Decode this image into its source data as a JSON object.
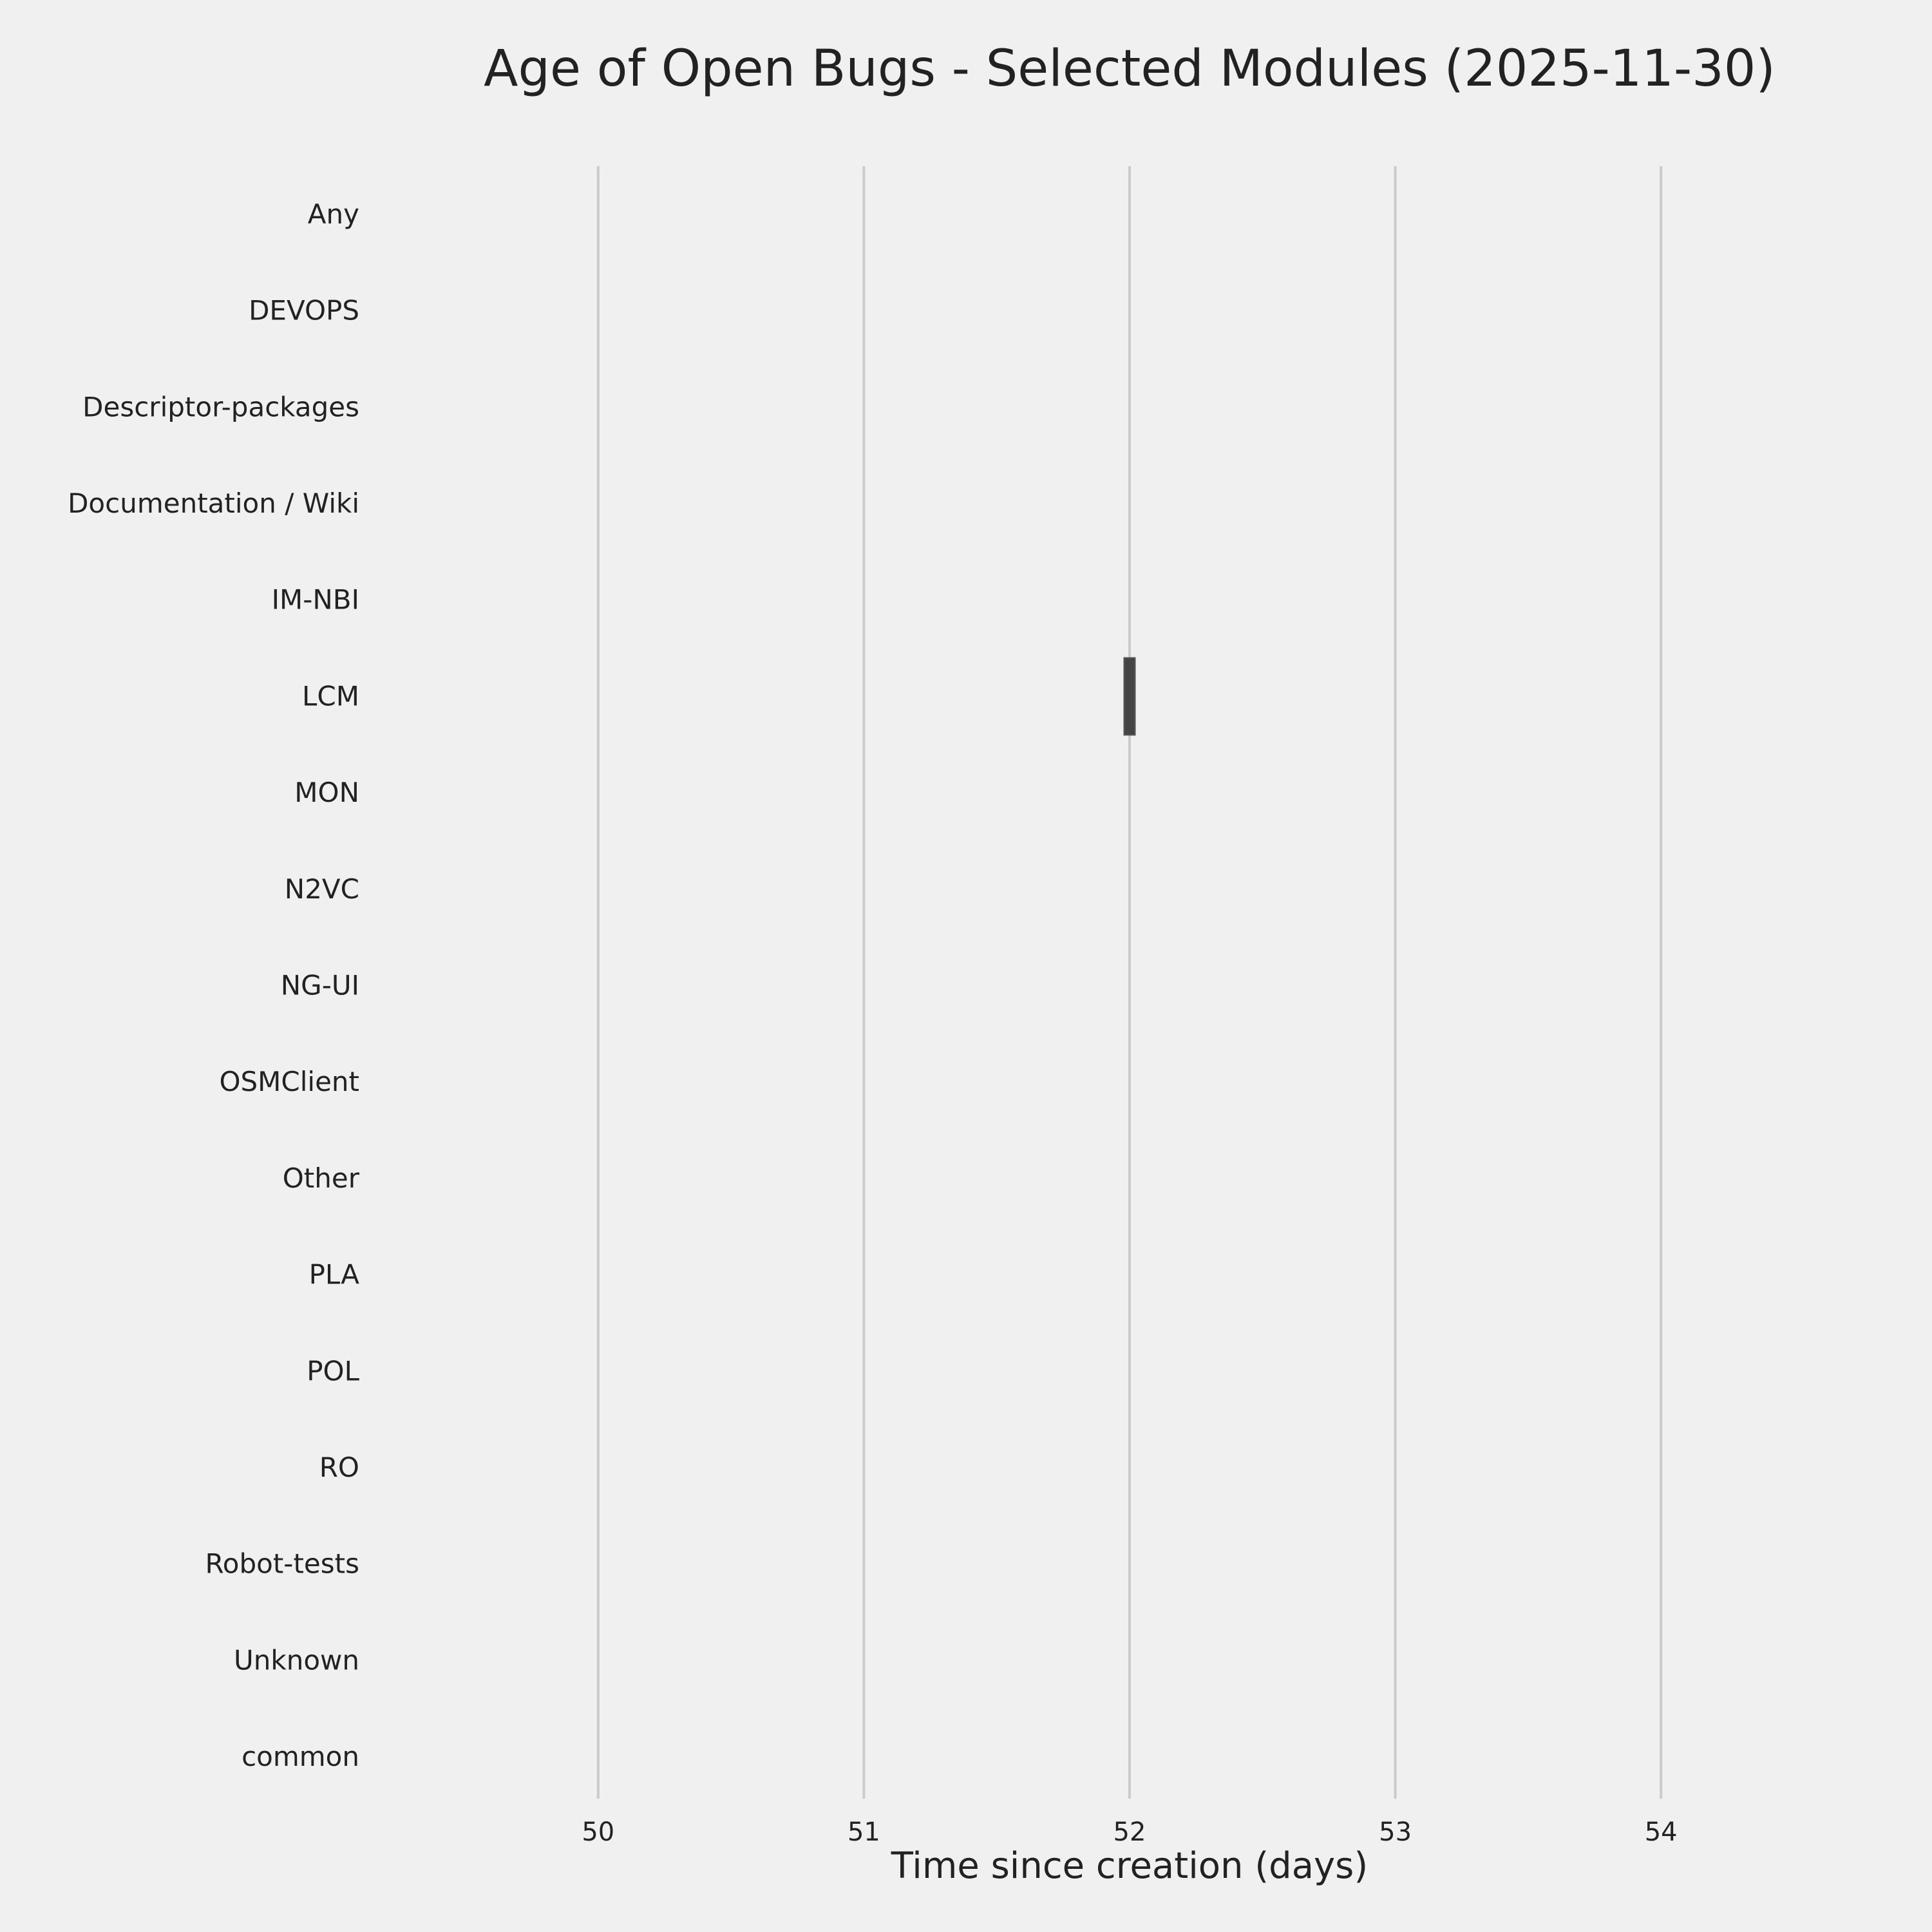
{
  "chart_data": {
    "type": "box",
    "orientation": "horizontal",
    "title": "Age of Open Bugs - Selected Modules (2025-11-30)",
    "xlabel": "Time since creation (days)",
    "ylabel": "",
    "categories": [
      "Any",
      "DEVOPS",
      "Descriptor-packages",
      "Documentation / Wiki",
      "IM-NBI",
      "LCM",
      "MON",
      "N2VC",
      "NG-UI",
      "OSMClient",
      "Other",
      "PLA",
      "POL",
      "RO",
      "Robot-tests",
      "Unknown",
      "common"
    ],
    "values": [
      [],
      [],
      [],
      [],
      [],
      [
        52
      ],
      [],
      [],
      [],
      [],
      [],
      [],
      [],
      [],
      [],
      [],
      []
    ],
    "xticks": [
      50,
      51,
      52,
      53,
      54
    ],
    "xlim": [
      49.14,
      54.86
    ],
    "grid": "vertical",
    "colors": {
      "background": "#f0f0f0",
      "grid": "#cbcbcb",
      "box": "#444444"
    }
  }
}
